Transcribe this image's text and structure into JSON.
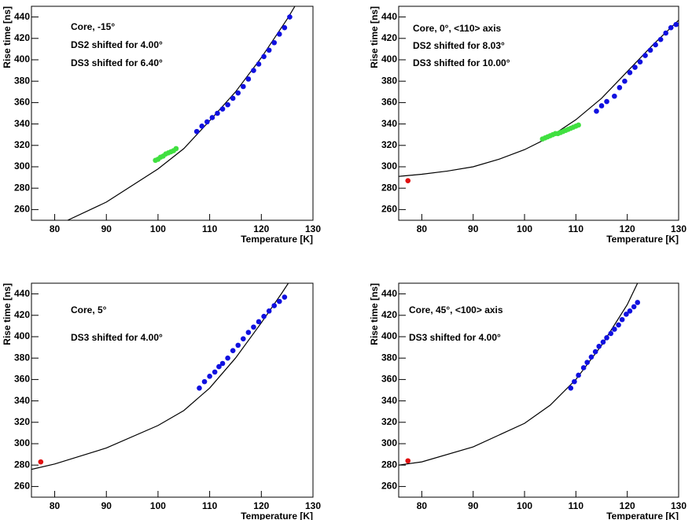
{
  "chart_data": [
    {
      "type": "scatter",
      "xlim": [
        75.5,
        130
      ],
      "ylim": [
        250,
        450
      ],
      "xticks": [
        80,
        90,
        100,
        110,
        120,
        130
      ],
      "yticks": [
        260,
        280,
        300,
        320,
        340,
        360,
        380,
        400,
        420,
        440
      ],
      "x_label": "Temperature [K]",
      "y_label": "Rise time [ns]",
      "annotations": [
        "Core, -15°",
        "DS2 shifted for  4.00°",
        "DS3 shifted for  6.40°"
      ],
      "fit": {
        "color": "#000000",
        "x": [
          82.5,
          90,
          100,
          105,
          110,
          115,
          120,
          125,
          126.5
        ],
        "values": [
          250,
          267,
          298,
          317,
          343,
          370,
          402,
          438,
          450
        ]
      },
      "series": [
        {
          "color": "#1010e0",
          "x": [
            107.5,
            108.5,
            109.5,
            110.5,
            111.5,
            112.5,
            113.5,
            114.5,
            115.5,
            116.5,
            117.5,
            118.5,
            119.5,
            120.5,
            121.5,
            122.5,
            123.5,
            124.5,
            125.5
          ],
          "values": [
            333,
            338,
            342,
            346,
            350,
            354,
            358,
            364,
            369,
            375,
            382,
            390,
            396,
            403,
            409,
            416,
            424,
            430,
            440
          ]
        },
        {
          "color": "#40e040",
          "x": [
            99.5,
            100,
            100.5,
            101,
            101.5,
            102,
            102.5,
            103,
            103.5
          ],
          "values": [
            306,
            307,
            309,
            310,
            312,
            313,
            314,
            315,
            317
          ]
        }
      ]
    },
    {
      "type": "scatter",
      "xlim": [
        75.5,
        130
      ],
      "ylim": [
        250,
        450
      ],
      "xticks": [
        80,
        90,
        100,
        110,
        120,
        130
      ],
      "yticks": [
        260,
        280,
        300,
        320,
        340,
        360,
        380,
        400,
        420,
        440
      ],
      "x_label": "Temperature [K]",
      "y_label": "Rise time [ns]",
      "annotations": [
        "Core, 0°, <110> axis",
        "DS2 shifted for  8.03°",
        "DS3 shifted for 10.00°"
      ],
      "fit": {
        "color": "#000000",
        "x": [
          75.5,
          80,
          85,
          90,
          95,
          100,
          105,
          110,
          115,
          120,
          125,
          130
        ],
        "values": [
          291,
          293,
          296,
          300,
          307,
          316,
          328,
          344,
          364,
          389,
          414,
          437
        ]
      },
      "series": [
        {
          "color": "#1010e0",
          "x": [
            114,
            115,
            116,
            117.5,
            118.5,
            119.5,
            120.5,
            121.5,
            122.5,
            123.5,
            124.5,
            125.5,
            126.5,
            127.5,
            128.5,
            129.5
          ],
          "values": [
            352,
            357,
            361,
            366,
            374,
            380,
            388,
            393,
            398,
            404,
            409,
            414,
            419,
            425,
            430,
            433
          ]
        },
        {
          "color": "#40e040",
          "x": [
            103.5,
            104,
            104.5,
            105,
            105.5,
            106,
            106.5,
            107,
            107.5,
            108,
            108.5,
            109,
            109.5,
            110,
            110.5
          ],
          "values": [
            326,
            327,
            328,
            329,
            330,
            331,
            331,
            332,
            333,
            334,
            335,
            336,
            337,
            338,
            339
          ]
        },
        {
          "color": "#e01010",
          "x": [
            77.3
          ],
          "values": [
            287
          ]
        }
      ]
    },
    {
      "type": "scatter",
      "xlim": [
        75.5,
        130
      ],
      "ylim": [
        250,
        450
      ],
      "xticks": [
        80,
        90,
        100,
        110,
        120,
        130
      ],
      "yticks": [
        260,
        280,
        300,
        320,
        340,
        360,
        380,
        400,
        420,
        440
      ],
      "x_label": "Temperature [K]",
      "y_label": "Rise time [ns]",
      "annotations": [
        "Core, 5°",
        "DS3 shifted for  4.00°"
      ],
      "fit": {
        "color": "#000000",
        "x": [
          75.5,
          80,
          90,
          100,
          105,
          110,
          115,
          120,
          124,
          125.5
        ],
        "values": [
          276,
          281,
          296,
          317,
          331,
          352,
          380,
          413,
          441,
          452
        ]
      },
      "series": [
        {
          "color": "#1010e0",
          "x": [
            108,
            109,
            110,
            111,
            111.8,
            112.5,
            113.5,
            114.5,
            115.5,
            116.5,
            117.5,
            118.5,
            119.5,
            120.5,
            121.5,
            122.5,
            123.5,
            124.5
          ],
          "values": [
            352,
            358,
            363,
            367,
            372,
            375,
            380,
            387,
            392,
            398,
            404,
            409,
            414,
            419,
            424,
            429,
            433,
            437
          ]
        },
        {
          "color": "#e01010",
          "x": [
            77.3
          ],
          "values": [
            283
          ]
        }
      ]
    },
    {
      "type": "scatter",
      "xlim": [
        75.5,
        130
      ],
      "ylim": [
        250,
        450
      ],
      "xticks": [
        80,
        90,
        100,
        110,
        120,
        130
      ],
      "yticks": [
        260,
        280,
        300,
        320,
        340,
        360,
        380,
        400,
        420,
        440
      ],
      "x_label": "Temperature [K]",
      "y_label": "Rise time [ns]",
      "annotations": [
        "Core, 45°, <100> axis",
        "DS3 shifted for  4.00°"
      ],
      "fit": {
        "color": "#000000",
        "x": [
          75.5,
          80,
          90,
          100,
          105,
          110,
          115,
          120,
          122
        ],
        "values": [
          280,
          283,
          297,
          319,
          336,
          360,
          392,
          430,
          450
        ]
      },
      "series": [
        {
          "color": "#1010e0",
          "x": [
            109,
            109.7,
            110.5,
            111.5,
            112.2,
            113,
            113.8,
            114.5,
            115.3,
            116,
            116.8,
            117.5,
            118.3,
            119,
            119.8,
            120.5,
            121.3,
            122
          ],
          "values": [
            352,
            358,
            364,
            371,
            376,
            381,
            386,
            391,
            395,
            399,
            403,
            407,
            411,
            416,
            421,
            424,
            428,
            432
          ]
        },
        {
          "color": "#e01010",
          "x": [
            77.3
          ],
          "values": [
            284
          ]
        }
      ]
    }
  ]
}
